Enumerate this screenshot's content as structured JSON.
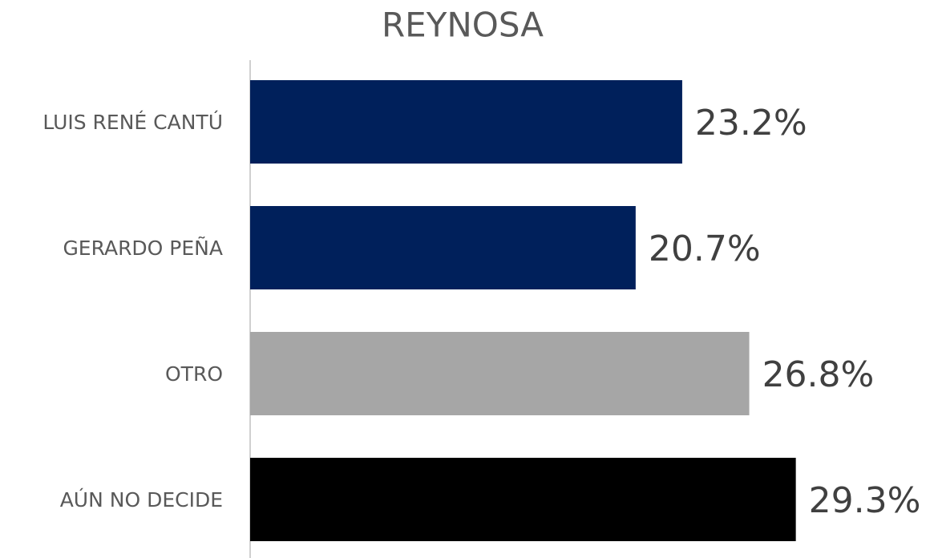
{
  "chart_data": {
    "type": "bar",
    "orientation": "horizontal",
    "title": "REYNOSA",
    "categories": [
      "LUIS RENÉ CANTÚ",
      "GERARDO PEÑA",
      "OTRO",
      "AÚN NO DECIDE"
    ],
    "values": [
      23.2,
      20.7,
      26.8,
      29.3
    ],
    "value_labels": [
      "23.2%",
      "20.7%",
      "26.8%",
      "29.3%"
    ],
    "colors": [
      "#00205b",
      "#00205b",
      "#a6a6a6",
      "#000000"
    ]
  }
}
